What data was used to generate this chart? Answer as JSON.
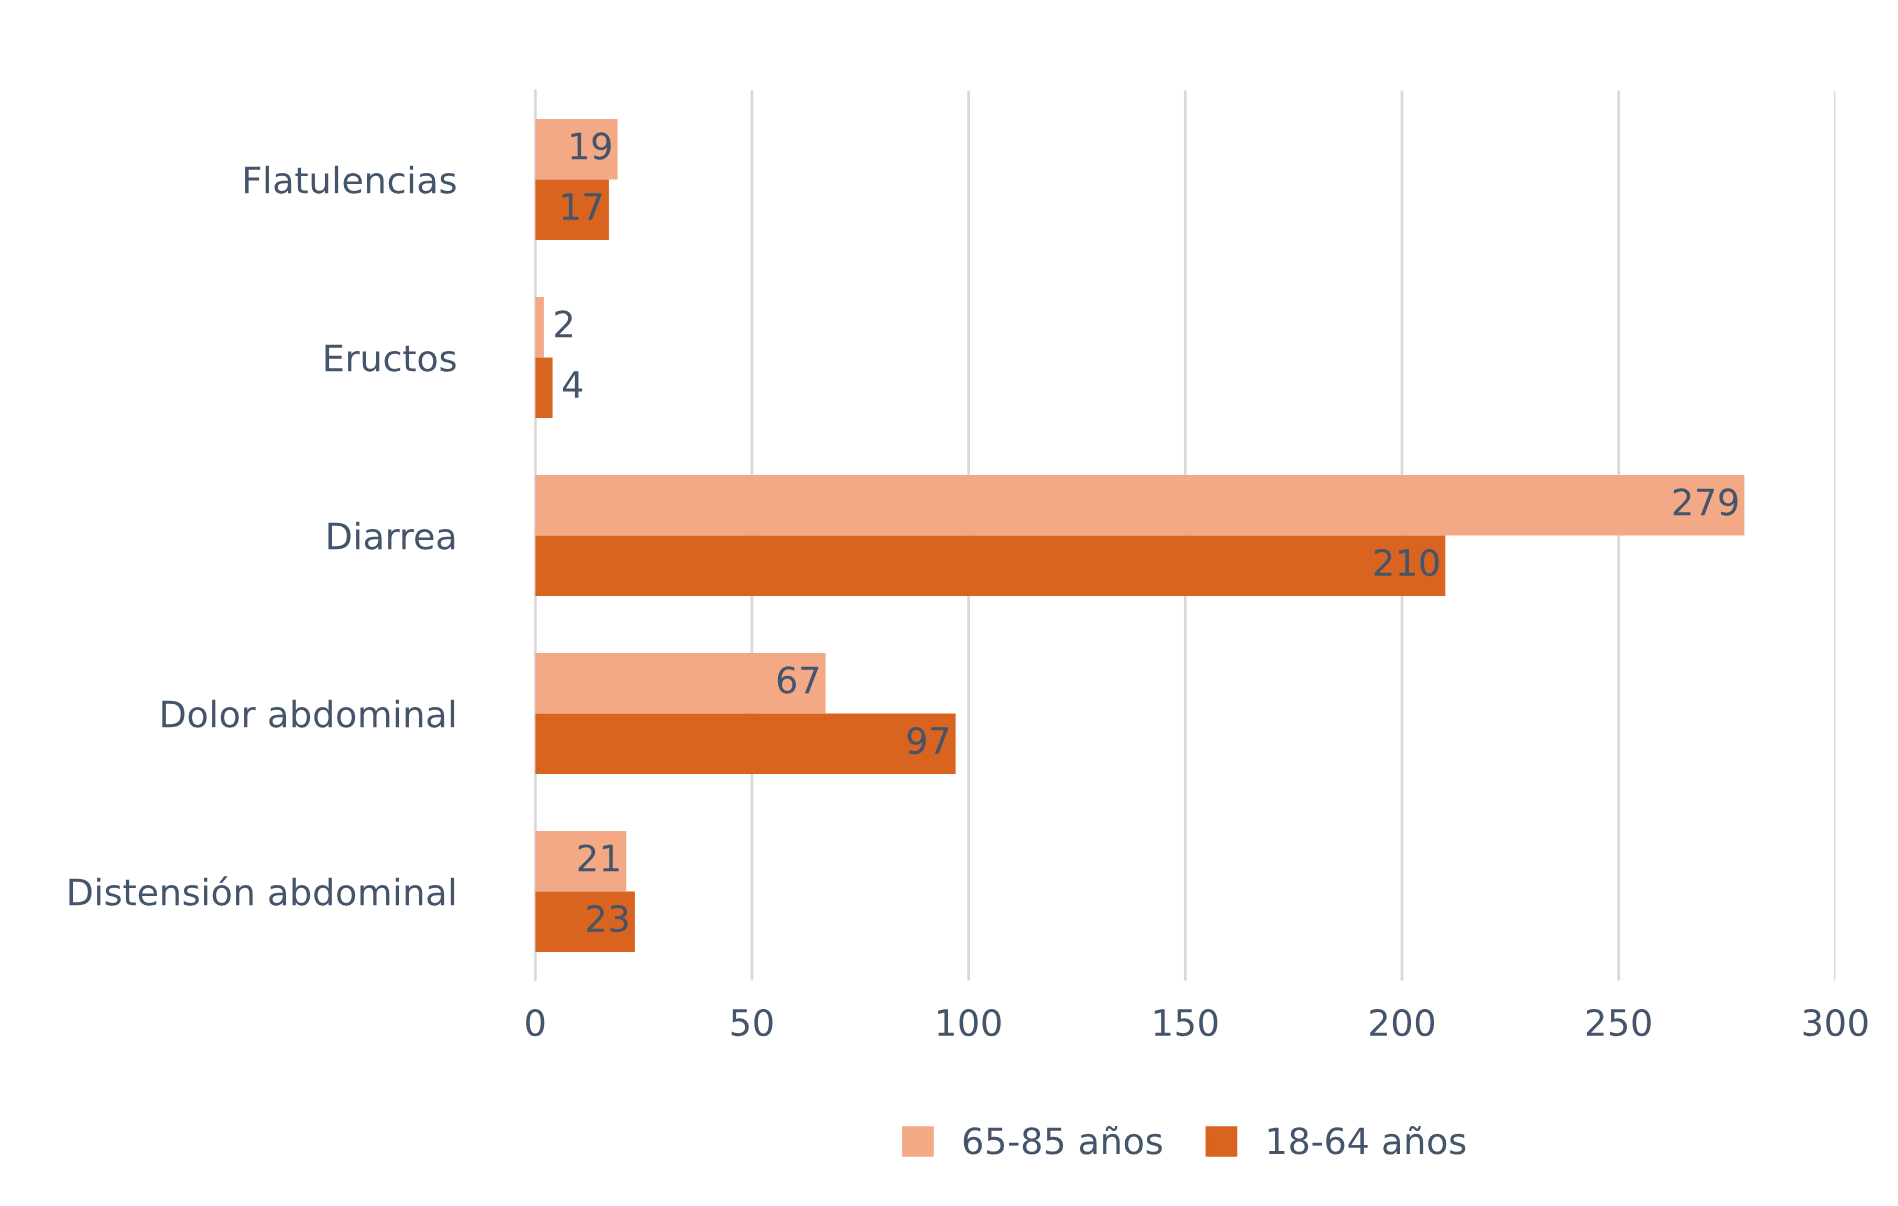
{
  "chart_data": {
    "type": "bar",
    "orientation": "horizontal",
    "categories": [
      "Flatulencias",
      "Eructos",
      "Diarrea",
      "Dolor abdominal",
      "Distensión abdominal"
    ],
    "series": [
      {
        "name": "65-85 años",
        "color": "#f4a986",
        "values": [
          19,
          2,
          279,
          67,
          21
        ]
      },
      {
        "name": "18-64 años",
        "color": "#d8641f",
        "values": [
          17,
          4,
          210,
          97,
          23
        ]
      }
    ],
    "xlim": [
      0,
      300
    ],
    "xticks": [
      0,
      50,
      100,
      150,
      200,
      250,
      300
    ],
    "grid": "x",
    "legend": "bottom",
    "data_labels": true
  }
}
